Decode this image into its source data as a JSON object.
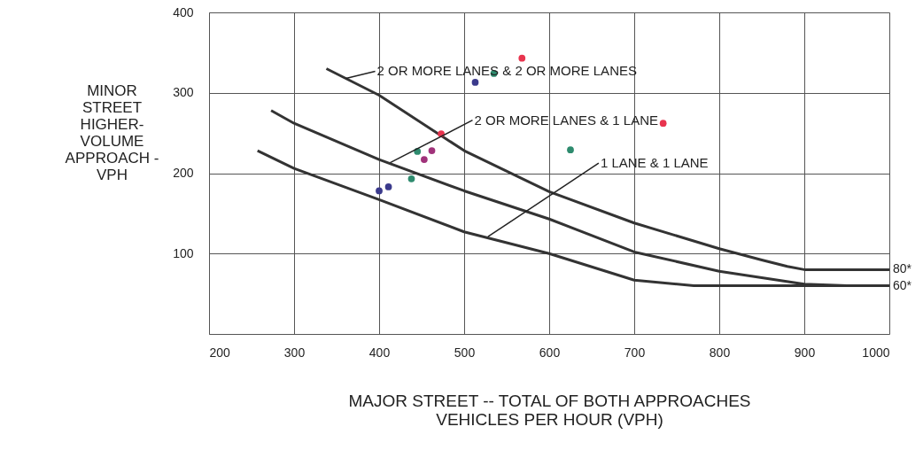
{
  "chart_data": {
    "type": "line",
    "xlabel": "MAJOR STREET -- TOTAL OF BOTH APPROACHES\nVEHICLES PER HOUR (VPH)",
    "ylabel": "MINOR\nSTREET\nHIGHER-\nVOLUME\nAPPROACH -\nVPH",
    "xlim": [
      200,
      1000
    ],
    "xticks": [
      200,
      300,
      400,
      500,
      600,
      700,
      800,
      900,
      1000
    ],
    "ylim": [
      0,
      400
    ],
    "yticks": [
      100,
      200,
      300,
      400
    ],
    "grid": true,
    "marker": "none",
    "line_style": "solid",
    "series": [
      {
        "color": "#333333",
        "x": [
          338,
          400,
          500,
          600,
          700,
          800,
          850,
          880,
          900,
          1000
        ],
        "values": [
          330,
          297,
          228,
          177,
          138,
          106,
          92,
          84,
          80,
          80
        ]
      },
      {
        "color": "#333333",
        "x": [
          273,
          300,
          400,
          500,
          600,
          700,
          800,
          900,
          950,
          1000
        ],
        "values": [
          278,
          262,
          217,
          178,
          143,
          102,
          78,
          62,
          60,
          60
        ]
      },
      {
        "color": "#333333",
        "x": [
          257,
          300,
          400,
          500,
          600,
          700,
          770,
          800,
          1000
        ],
        "values": [
          228,
          206,
          167,
          127,
          100,
          67,
          60,
          60,
          60
        ]
      },
      {
        "type": "scatter",
        "marker": "circle",
        "color": "#e8344e",
        "x": [
          568,
          473,
          734
        ],
        "values": [
          343,
          249,
          262
        ]
      },
      {
        "type": "scatter",
        "marker": "circle",
        "color": "#2e8b6e",
        "x": [
          535,
          445,
          438,
          625
        ],
        "values": [
          324,
          227,
          193,
          229
        ]
      },
      {
        "type": "scatter",
        "marker": "circle",
        "color": "#3b3a8c",
        "x": [
          513,
          411,
          400
        ],
        "values": [
          313,
          183,
          178
        ]
      },
      {
        "type": "scatter",
        "marker": "circle",
        "color": "#a0327a",
        "x": [
          462,
          453
        ],
        "values": [
          228,
          217
        ]
      }
    ],
    "annotations": [
      {
        "text": "2 OR MORE LANES & 2 OR MORE LANES",
        "x": 361,
        "y": 318
      },
      {
        "text": "2 OR MORE LANES & 1 LANE",
        "x": 413,
        "y": 213
      },
      {
        "text": "1 LANE & 1 LANE",
        "x": 528,
        "y": 121
      },
      {
        "text": "80*",
        "x": 1000,
        "y": 80
      },
      {
        "text": "60*",
        "x": 1000,
        "y": 60
      }
    ]
  }
}
